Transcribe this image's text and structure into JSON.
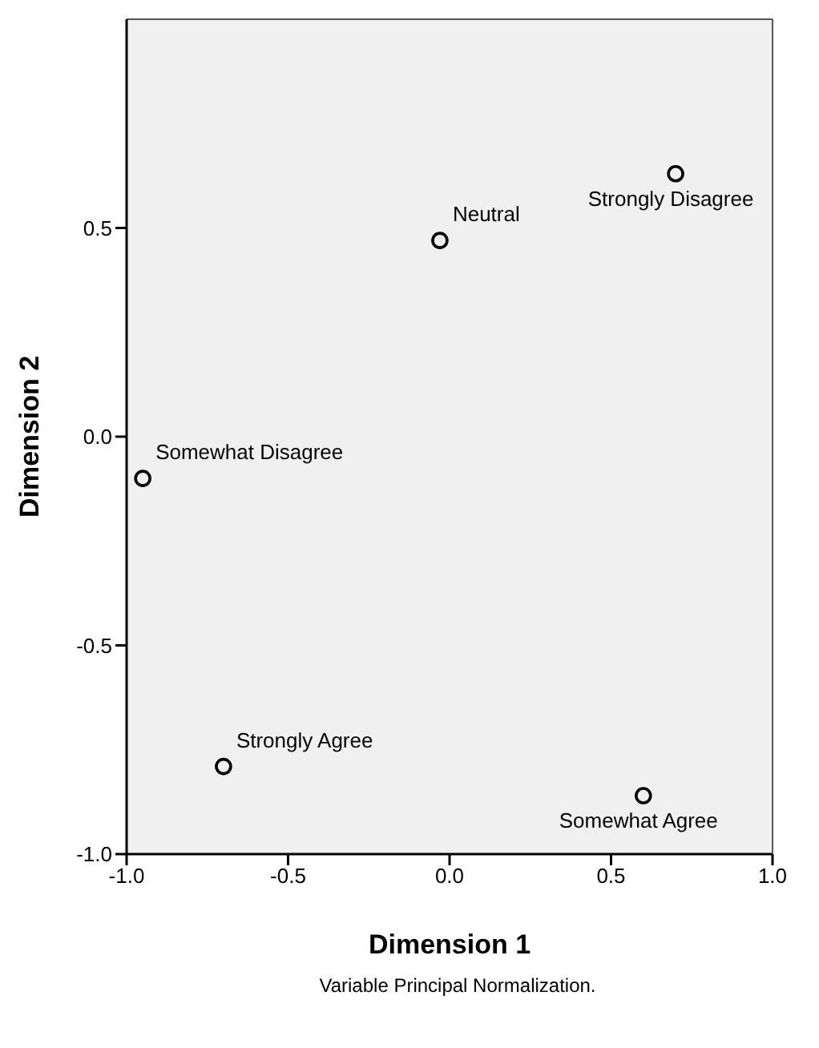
{
  "chart_data": {
    "type": "scatter",
    "xlabel": "Dimension 1",
    "ylabel": "Dimension 2",
    "x": [
      -0.03,
      0.7,
      -0.95,
      -0.7,
      0.6
    ],
    "series": [
      {
        "color": "#000000",
        "values": [
          0.47,
          0.63,
          -0.1,
          -0.79,
          -0.86
        ]
      }
    ],
    "xlim": [
      -1.0,
      1.0
    ],
    "xticks": [
      {
        "value": -1,
        "label": "-1.0"
      },
      -0.5,
      {
        "value": 0,
        "label": "0.0"
      },
      0.5,
      {
        "value": 1,
        "label": "1.0"
      }
    ],
    "ylim": [
      -1.0,
      1.0
    ],
    "yticks": [
      {
        "value": -1,
        "label": "-1.0"
      },
      -0.5,
      {
        "value": 0,
        "label": "0.0"
      },
      0.5
    ],
    "marker": "circle",
    "legend": false,
    "annotations": [
      {
        "text": "Neutral",
        "x": -0.03,
        "y": 0.47
      },
      {
        "text": "Strongly Disagree",
        "x": 0.7,
        "y": 0.63
      },
      {
        "text": "Somewhat Disagree",
        "x": -0.95,
        "y": -0.1
      },
      {
        "text": "Strongly Agree",
        "x": -0.7,
        "y": -0.79
      },
      {
        "text": "Somewhat Agree",
        "x": 0.6,
        "y": -0.86
      },
      "Variable Principal Normalization."
    ]
  }
}
